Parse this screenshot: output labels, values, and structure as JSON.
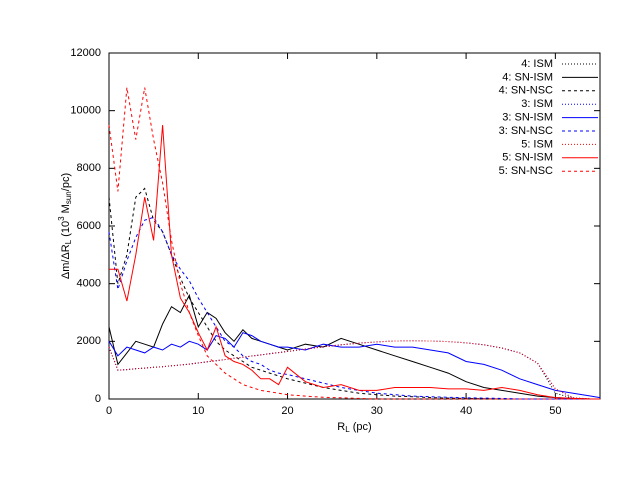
{
  "chart_data": {
    "type": "line",
    "xlabel": [
      {
        "text": "R"
      },
      {
        "text": "L",
        "sub": true
      },
      {
        "text": " (pc)"
      }
    ],
    "ylabel": [
      {
        "text": "Δm/ΔR"
      },
      {
        "text": "L",
        "sub": true
      },
      {
        "text": " (10"
      },
      {
        "text": "3",
        "sup": true
      },
      {
        "text": " M"
      },
      {
        "text": "sun",
        "sub": true
      },
      {
        "text": "/pc)"
      }
    ],
    "xlim": [
      0,
      55
    ],
    "ylim": [
      0,
      12000
    ],
    "xticks": [
      0,
      10,
      20,
      30,
      40,
      50
    ],
    "yticks": [
      0,
      2000,
      4000,
      6000,
      8000,
      10000,
      12000
    ],
    "legend": "top-right",
    "x": [
      0,
      1,
      2,
      3,
      4,
      5,
      6,
      7,
      8,
      9,
      10,
      11,
      12,
      13,
      14,
      15,
      16,
      17,
      18,
      19,
      20,
      22,
      24,
      26,
      28,
      30,
      32,
      34,
      36,
      38,
      40,
      42,
      44,
      46,
      48,
      50,
      52,
      54,
      55
    ],
    "series": [
      {
        "name": "4: ISM",
        "color": "#000000",
        "dash": "1,2",
        "values": [
          1800,
          1000,
          1020,
          1050,
          1070,
          1100,
          1120,
          1150,
          1180,
          1210,
          1250,
          1290,
          1330,
          1370,
          1410,
          1450,
          1490,
          1530,
          1570,
          1610,
          1650,
          1730,
          1810,
          1880,
          1940,
          1980,
          2010,
          2020,
          2010,
          1990,
          1950,
          1880,
          1770,
          1600,
          1250,
          200,
          20,
          0,
          0
        ]
      },
      {
        "name": "4: SN-ISM",
        "color": "#000000",
        "dash": "",
        "values": [
          2500,
          1200,
          1600,
          2000,
          1900,
          1800,
          2600,
          3200,
          3000,
          3600,
          2500,
          3000,
          2800,
          2300,
          2000,
          2400,
          2100,
          2000,
          1900,
          1800,
          1700,
          1900,
          1800,
          2100,
          1900,
          1700,
          1500,
          1300,
          1100,
          900,
          600,
          400,
          300,
          200,
          100,
          50,
          20,
          0,
          0
        ]
      },
      {
        "name": "4: SN-NSC",
        "color": "#000000",
        "dash": "3,3",
        "values": [
          7000,
          4000,
          5000,
          7000,
          7300,
          6200,
          5800,
          5000,
          4200,
          3500,
          3000,
          2500,
          2000,
          1700,
          1500,
          1300,
          1100,
          1000,
          900,
          800,
          700,
          550,
          400,
          300,
          200,
          150,
          100,
          80,
          50,
          30,
          20,
          10,
          0,
          0,
          0,
          0,
          0,
          0,
          0
        ]
      },
      {
        "name": "3: ISM",
        "color": "#0000ff",
        "dash": "1,2",
        "values": [
          1800,
          1000,
          1020,
          1050,
          1070,
          1100,
          1120,
          1150,
          1180,
          1210,
          1250,
          1290,
          1330,
          1370,
          1410,
          1450,
          1490,
          1530,
          1570,
          1610,
          1650,
          1730,
          1810,
          1880,
          1940,
          1980,
          2010,
          2020,
          2010,
          1990,
          1950,
          1880,
          1770,
          1600,
          1250,
          350,
          40,
          0,
          0
        ]
      },
      {
        "name": "3: SN-ISM",
        "color": "#0000ff",
        "dash": "",
        "values": [
          2000,
          1500,
          1800,
          1700,
          1600,
          1800,
          1700,
          1900,
          1800,
          2000,
          1900,
          1700,
          2200,
          2100,
          1800,
          2300,
          2200,
          2000,
          1900,
          1800,
          1800,
          1700,
          1900,
          1800,
          1800,
          1900,
          1800,
          1800,
          1700,
          1600,
          1300,
          1200,
          1000,
          700,
          500,
          300,
          200,
          100,
          50
        ]
      },
      {
        "name": "3: SN-NSC",
        "color": "#0000ff",
        "dash": "3,3",
        "values": [
          5800,
          3800,
          4800,
          5600,
          6200,
          6300,
          5800,
          5000,
          4500,
          4100,
          3500,
          3000,
          2500,
          2000,
          1800,
          1500,
          1300,
          1200,
          1000,
          900,
          850,
          700,
          550,
          400,
          300,
          200,
          150,
          100,
          80,
          60,
          40,
          30,
          20,
          0,
          0,
          0,
          0,
          0,
          0
        ]
      },
      {
        "name": "5: ISM",
        "color": "#ff0000",
        "dash": "1,2",
        "values": [
          1800,
          1000,
          1020,
          1050,
          1070,
          1100,
          1120,
          1150,
          1180,
          1210,
          1250,
          1290,
          1330,
          1370,
          1410,
          1450,
          1490,
          1530,
          1570,
          1610,
          1650,
          1730,
          1810,
          1880,
          1940,
          1980,
          2010,
          2020,
          2010,
          1990,
          1950,
          1880,
          1770,
          1600,
          1250,
          350,
          40,
          0,
          0
        ]
      },
      {
        "name": "5: SN-ISM",
        "color": "#ff0000",
        "dash": "",
        "values": [
          4500,
          4500,
          3400,
          5000,
          7000,
          5500,
          9500,
          5000,
          3500,
          3000,
          2300,
          1700,
          2500,
          1500,
          1300,
          1200,
          1000,
          700,
          700,
          500,
          1100,
          600,
          400,
          500,
          300,
          300,
          400,
          400,
          400,
          350,
          350,
          300,
          400,
          300,
          150,
          50,
          20,
          0,
          0
        ]
      },
      {
        "name": "5: SN-NSC",
        "color": "#ff0000",
        "dash": "3,3",
        "values": [
          9500,
          7200,
          10800,
          9000,
          10800,
          9000,
          7500,
          5500,
          4000,
          3000,
          2200,
          1500,
          1200,
          900,
          700,
          500,
          400,
          300,
          250,
          200,
          150,
          100,
          60,
          40,
          20,
          0,
          0,
          0,
          0,
          0,
          0,
          0,
          0,
          0,
          0,
          0,
          0,
          0,
          0
        ]
      }
    ]
  }
}
